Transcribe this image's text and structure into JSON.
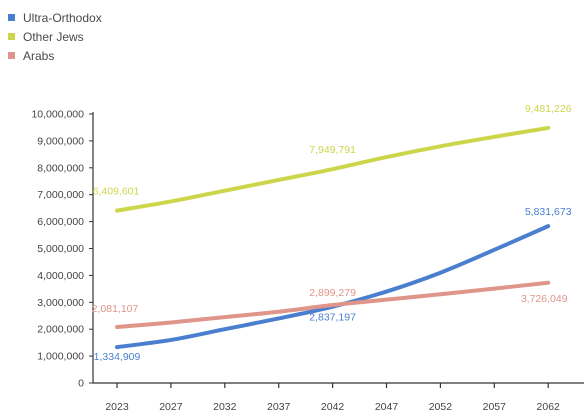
{
  "chart_data": {
    "type": "line",
    "x": [
      2023,
      2027,
      2032,
      2037,
      2042,
      2047,
      2052,
      2057,
      2062
    ],
    "series": [
      {
        "name": "Ultra-Orthodox",
        "color": "#4a7fcf",
        "values": [
          1334909,
          1600000,
          2000000,
          2400000,
          2837197,
          3400000,
          4100000,
          4950000,
          5831673
        ]
      },
      {
        "name": "Other Jews",
        "color": "#cdd64a",
        "values": [
          6409601,
          6750000,
          7150000,
          7550000,
          7949791,
          8400000,
          8800000,
          9150000,
          9481226
        ]
      },
      {
        "name": "Arabs",
        "color": "#e0958a",
        "values": [
          2081107,
          2250000,
          2450000,
          2650000,
          2899279,
          3100000,
          3300000,
          3510000,
          3726049
        ]
      }
    ],
    "annotations": [
      {
        "series": 0,
        "x": 2023,
        "text": "1,334,909"
      },
      {
        "series": 0,
        "x": 2042,
        "text": "2,837,197"
      },
      {
        "series": 0,
        "x": 2062,
        "text": "5,831,673"
      },
      {
        "series": 1,
        "x": 2023,
        "text": "6,409,601"
      },
      {
        "series": 1,
        "x": 2042,
        "text": "7,949,791"
      },
      {
        "series": 1,
        "x": 2062,
        "text": "9,481,226"
      },
      {
        "series": 2,
        "x": 2023,
        "text": "2,081,107"
      },
      {
        "series": 2,
        "x": 2042,
        "text": "2,899,279"
      },
      {
        "series": 2,
        "x": 2062,
        "text": "3,726,049"
      }
    ],
    "y_ticks": [
      "0",
      "1,000,000",
      "2,000,000",
      "3,000,000",
      "4,000,000",
      "5,000,000",
      "6,000,000",
      "7,000,000",
      "8,000,000",
      "9,000,000",
      "10,000,000"
    ],
    "ylim": [
      0,
      10000000
    ],
    "grid": false,
    "legend_position": "top-left",
    "axis_color": "#333333",
    "tick_label_color": "#444444"
  }
}
